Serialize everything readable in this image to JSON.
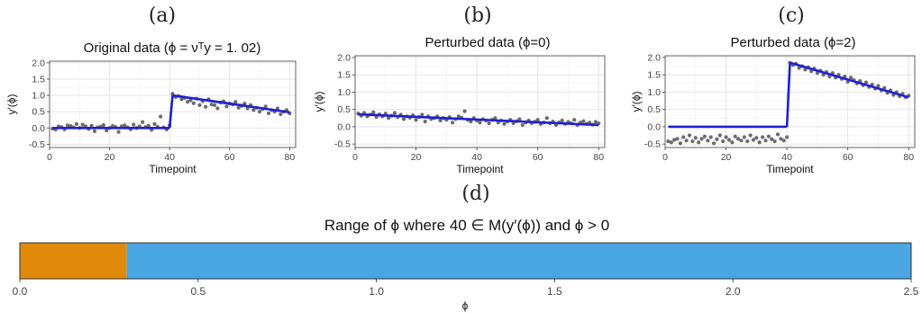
{
  "chart_data": [
    {
      "panel": "(a)",
      "type": "scatter",
      "title": "Original data (ϕ = νᵀy = 1. 02)",
      "xlabel": "Timepoint",
      "ylabel": "y′(ϕ)",
      "xlim": [
        0,
        82
      ],
      "ylim": [
        -0.6,
        2.05
      ],
      "xticks": [
        "0",
        "20",
        "40",
        "60",
        "80"
      ],
      "yticks": [
        "-0.5",
        "0.0",
        "0.5",
        "1.0",
        "1.5",
        "2.0"
      ],
      "grid": true,
      "points": [
        -0.02,
        -0.05,
        0.05,
        0.03,
        -0.04,
        0.08,
        0.06,
        0.02,
        0.12,
        0.0,
        0.1,
        0.05,
        -0.03,
        0.07,
        -0.1,
        0.02,
        0.04,
        0.09,
        -0.08,
        0.0,
        0.06,
        0.03,
        -0.12,
        0.05,
        0.08,
        0.02,
        -0.04,
        0.1,
        0.0,
        0.05,
        0.18,
        0.03,
        0.07,
        -0.06,
        0.12,
        0.04,
        0.35,
        0.02,
        -0.05,
        0.08,
        1.05,
        0.95,
        0.98,
        0.88,
        0.92,
        0.8,
        0.85,
        0.76,
        0.9,
        0.7,
        0.82,
        0.65,
        0.88,
        0.72,
        0.7,
        0.6,
        0.78,
        0.82,
        0.66,
        0.75,
        0.72,
        0.8,
        0.62,
        0.68,
        0.75,
        0.6,
        0.7,
        0.55,
        0.62,
        0.5,
        0.58,
        0.66,
        0.45,
        0.55,
        0.5,
        0.6,
        0.42,
        0.5,
        0.55,
        0.45
      ],
      "fit": {
        "segment1": [
          [
            1,
            0.0
          ],
          [
            40,
            0.0
          ]
        ],
        "segment2": [
          [
            41,
            1.0
          ],
          [
            80,
            0.48
          ]
        ]
      },
      "fit_color": "#1f1fd6"
    },
    {
      "panel": "(b)",
      "type": "scatter",
      "title": "Perturbed data (ϕ=0)",
      "xlabel": "Timepoint",
      "ylabel": "y′(ϕ)",
      "xlim": [
        0,
        82
      ],
      "ylim": [
        -0.6,
        2.05
      ],
      "xticks": [
        "0",
        "20",
        "40",
        "60",
        "80"
      ],
      "yticks": [
        "-0.5",
        "0.0",
        "0.5",
        "1.0",
        "1.5",
        "2.0"
      ],
      "grid": true,
      "points": [
        0.38,
        0.32,
        0.4,
        0.3,
        0.35,
        0.42,
        0.28,
        0.36,
        0.3,
        0.38,
        0.25,
        0.32,
        0.4,
        0.28,
        0.35,
        0.22,
        0.3,
        0.26,
        0.33,
        0.2,
        0.28,
        0.35,
        0.15,
        0.3,
        0.22,
        0.25,
        0.3,
        0.18,
        0.25,
        0.2,
        0.28,
        0.12,
        0.22,
        0.3,
        0.26,
        0.45,
        0.2,
        0.15,
        0.25,
        0.18,
        0.12,
        0.22,
        0.18,
        0.1,
        0.2,
        0.25,
        0.12,
        0.18,
        0.08,
        0.15,
        0.2,
        0.1,
        0.16,
        0.22,
        0.05,
        0.12,
        0.18,
        0.1,
        0.14,
        0.2,
        0.08,
        0.12,
        0.25,
        0.1,
        0.15,
        0.05,
        0.12,
        0.18,
        0.08,
        0.14,
        0.1,
        0.2,
        0.05,
        0.12,
        0.16,
        0.08,
        0.12,
        0.06,
        0.14,
        0.1
      ],
      "fit": {
        "segment1": [
          [
            1,
            0.36
          ],
          [
            80,
            0.05
          ]
        ]
      },
      "fit_color": "#1f1fd6"
    },
    {
      "panel": "(c)",
      "type": "scatter",
      "title": "Perturbed data (ϕ=2)",
      "xlabel": "Timepoint",
      "ylabel": "y′(ϕ)",
      "xlim": [
        0,
        82
      ],
      "ylim": [
        -0.6,
        2.05
      ],
      "xticks": [
        "0",
        "20",
        "40",
        "60",
        "80"
      ],
      "yticks": [
        "-0.5",
        "0.0",
        "0.5",
        "1.0",
        "1.5",
        "2.0"
      ],
      "grid": true,
      "points": [
        -0.42,
        -0.45,
        -0.38,
        -0.35,
        -0.48,
        -0.3,
        -0.4,
        -0.25,
        -0.42,
        -0.32,
        -0.45,
        -0.35,
        -0.28,
        -0.4,
        -0.3,
        -0.48,
        -0.36,
        -0.25,
        -0.42,
        -0.3,
        -0.38,
        -0.45,
        -0.28,
        -0.35,
        -0.4,
        -0.3,
        -0.42,
        -0.25,
        -0.38,
        -0.32,
        -0.45,
        -0.3,
        -0.4,
        -0.28,
        -0.36,
        -0.42,
        -0.22,
        -0.35,
        -0.4,
        -0.3,
        1.85,
        1.78,
        1.82,
        1.7,
        1.75,
        1.65,
        1.72,
        1.6,
        1.68,
        1.55,
        1.62,
        1.5,
        1.58,
        1.45,
        1.55,
        1.42,
        1.5,
        1.38,
        1.45,
        1.3,
        1.42,
        1.35,
        1.25,
        1.32,
        1.2,
        1.28,
        1.15,
        1.22,
        1.1,
        1.18,
        1.05,
        1.12,
        0.98,
        1.05,
        0.92,
        1.0,
        0.88,
        0.95,
        0.85,
        0.9
      ],
      "fit": {
        "segment1": [
          [
            1,
            0.0
          ],
          [
            40,
            0.0
          ]
        ],
        "segment2": [
          [
            41,
            1.85
          ],
          [
            80,
            0.85
          ]
        ]
      },
      "fit_color": "#1f1fd6"
    },
    {
      "panel": "(d)",
      "type": "bar",
      "orientation": "horizontal-stacked",
      "title": "Range of ϕ where 40 ∈ M(y′(ϕ)) and ϕ > 0",
      "xlabel": "ϕ",
      "xlim": [
        0,
        2.5
      ],
      "xticks": [
        "0.0",
        "0.5",
        "1.0",
        "1.5",
        "2.0",
        "2.5"
      ],
      "segments": [
        {
          "from": 0.0,
          "to": 0.3,
          "color": "#e08a0b"
        },
        {
          "from": 0.3,
          "to": 2.5,
          "color": "#4aa5e3"
        }
      ]
    }
  ],
  "colors": {
    "point": "#6b6b6b",
    "fit": "#1f1fd6",
    "grid_major": "#e3e3e3",
    "grid_minor": "#f1f1f1",
    "panel_border": "#555555"
  }
}
